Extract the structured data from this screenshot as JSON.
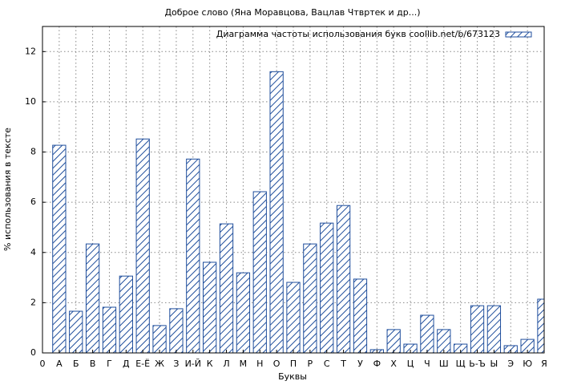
{
  "chart_data": {
    "type": "bar",
    "title": "Доброе слово (Яна Моравцова, Вацлав Чтвртек и др...)",
    "x_label": "Буквы",
    "y_label": "% использования в тексте",
    "categories": [
      "0",
      "А",
      "Б",
      "В",
      "Г",
      "Д",
      "Е-Ё",
      "Ж",
      "З",
      "И-Й",
      "К",
      "Л",
      "М",
      "Н",
      "О",
      "П",
      "Р",
      "С",
      "Т",
      "У",
      "Ф",
      "Х",
      "Ц",
      "Ч",
      "Ш",
      "Щ",
      "Ь-Ъ",
      "Ы",
      "Э",
      "Ю",
      "Я"
    ],
    "series": [
      {
        "name": "Диаграмма частоты использования букв coollib.net/b/673123",
        "color": "#1f4e9c",
        "values": [
          null,
          8.27,
          1.66,
          4.34,
          1.82,
          3.06,
          8.52,
          1.09,
          1.76,
          7.72,
          3.61,
          5.14,
          3.19,
          6.42,
          11.2,
          2.81,
          4.34,
          5.17,
          5.87,
          2.94,
          0.13,
          0.93,
          0.35,
          1.5,
          0.93,
          0.35,
          1.88,
          1.88,
          0.29,
          0.54,
          2.14
        ]
      }
    ],
    "ylim": [
      0,
      13
    ],
    "yticks": [
      0,
      2,
      4,
      6,
      8,
      10,
      12
    ],
    "grid": true,
    "legend": "upper right",
    "hatch": true
  }
}
